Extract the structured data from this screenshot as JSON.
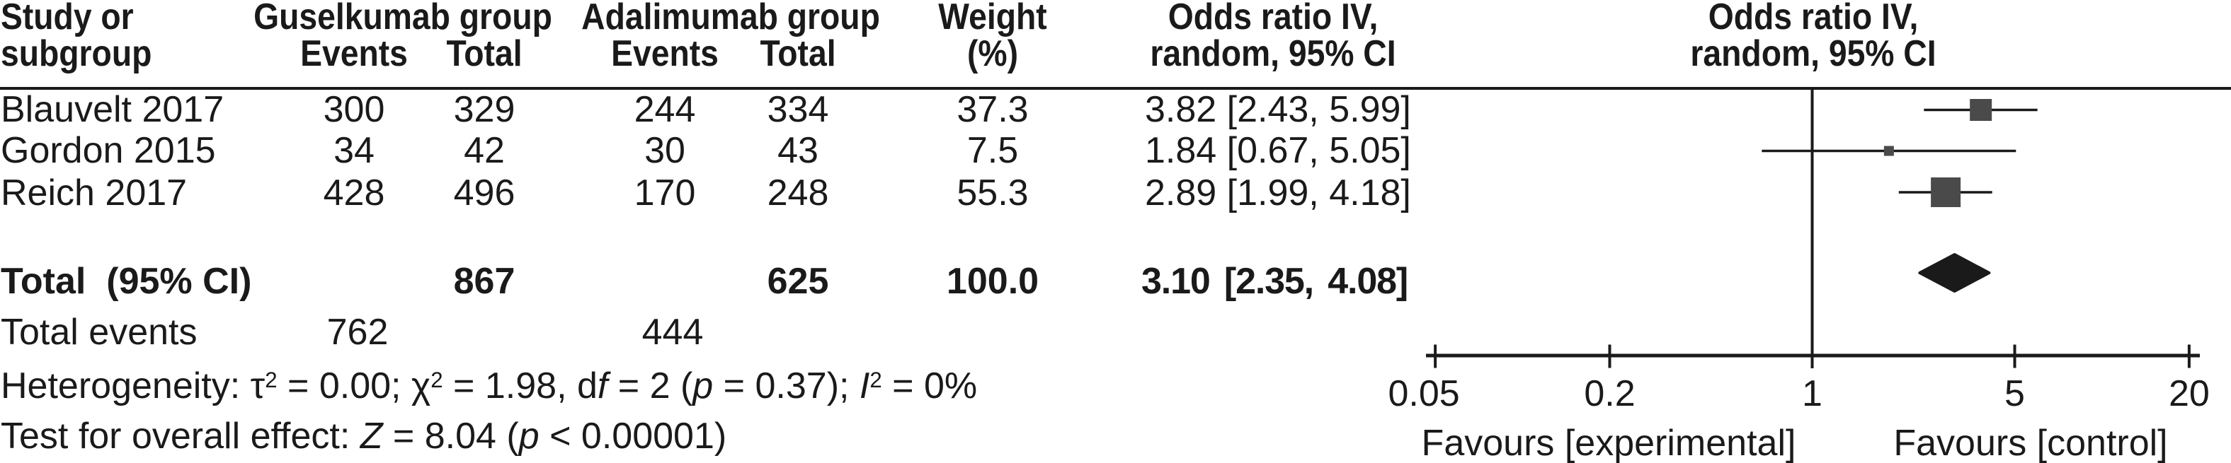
{
  "colors": {
    "ink": "#1a1a1a",
    "square": "#4a4a4a",
    "diamond": "#1a1a1a",
    "background": "#ffffff"
  },
  "table": {
    "header": {
      "study_line1": "Study or",
      "study_line2": "subgroup",
      "group1_name": "Guselkumab group",
      "group1_events": "Events",
      "group1_total": "Total",
      "group2_name": "Adalimumab group",
      "group2_events": "Events",
      "group2_total": "Total",
      "weight_line1": "Weight",
      "weight_line2": "(%)",
      "or_col_line1": "Odds ratio IV,",
      "or_col_line2": "random, 95% CI",
      "plot_col_line1": "Odds ratio IV,",
      "plot_col_line2": "random, 95% CI"
    },
    "rows": [
      {
        "study": "Blauvelt 2017",
        "g_events": "300",
        "g_total": "329",
        "a_events": "244",
        "a_total": "334",
        "weight": "37.3",
        "or_ci": "3.82 [2.43, 5.99]"
      },
      {
        "study": "Gordon 2015",
        "g_events": "34",
        "g_total": "42",
        "a_events": "30",
        "a_total": "43",
        "weight": "7.5",
        "or_ci": "1.84 [0.67, 5.05]"
      },
      {
        "study": "Reich 2017",
        "g_events": "428",
        "g_total": "496",
        "a_events": "170",
        "a_total": "248",
        "weight": "55.3",
        "or_ci": "2.89 [1.99, 4.18]"
      }
    ],
    "total_row": {
      "label": "Total  (95% CI)",
      "g_total": "867",
      "a_total": "625",
      "weight": "100.0",
      "or_ci": "3.10 [2.35, 4.08]"
    },
    "total_events": {
      "label": "Total events",
      "g_events": "762",
      "a_events": "444"
    },
    "heterogeneity_segments": [
      {
        "t": "Heterogeneity: τ"
      },
      {
        "t": "2",
        "sup": 1
      },
      {
        "t": " = 0.00; χ"
      },
      {
        "t": "2",
        "sup": 1
      },
      {
        "t": " = 1.98, d"
      },
      {
        "t": "f",
        "i": 1
      },
      {
        "t": " = 2 ("
      },
      {
        "t": "p",
        "i": 1
      },
      {
        "t": " = 0.37); "
      },
      {
        "t": "I",
        "i": 1
      },
      {
        "t": "2",
        "sup": 1
      },
      {
        "t": " = 0%"
      }
    ],
    "overall_effect_segments": [
      {
        "t": "Test for overall effect: "
      },
      {
        "t": "Z",
        "i": 1
      },
      {
        "t": " = 8.04 ("
      },
      {
        "t": "p",
        "i": 1
      },
      {
        "t": " < 0.00001)"
      }
    ]
  },
  "chart_data": {
    "type": "forest",
    "effect_measure": "Odds ratio IV, random, 95% CI",
    "log_scale": true,
    "x_ticks": [
      0.05,
      0.2,
      1,
      5,
      20
    ],
    "x_tick_labels": [
      "0.05",
      "0.2",
      "1",
      "5",
      "20"
    ],
    "axis_range": [
      0.05,
      20
    ],
    "favours_left": "Favours [experimental]",
    "favours_right": "Favours [control]",
    "studies": [
      {
        "label": "Blauvelt 2017",
        "or": 3.82,
        "ci_low": 2.43,
        "ci_high": 5.99,
        "weight_pct": 37.3,
        "marker_size_px": 31
      },
      {
        "label": "Gordon 2015",
        "or": 1.84,
        "ci_low": 0.67,
        "ci_high": 5.05,
        "weight_pct": 7.5,
        "marker_size_px": 14
      },
      {
        "label": "Reich 2017",
        "or": 2.89,
        "ci_low": 1.99,
        "ci_high": 4.18,
        "weight_pct": 55.3,
        "marker_size_px": 42
      }
    ],
    "total": {
      "or": 3.1,
      "ci_low": 2.35,
      "ci_high": 4.08,
      "weight_pct": 100.0
    },
    "heterogeneity": "Heterogeneity: τ2 = 0.00; χ2 = 1.98, df = 2 (p = 0.37); I2 = 0%",
    "overall_effect": "Test for overall effect: Z = 8.04 (p < 0.00001)"
  }
}
